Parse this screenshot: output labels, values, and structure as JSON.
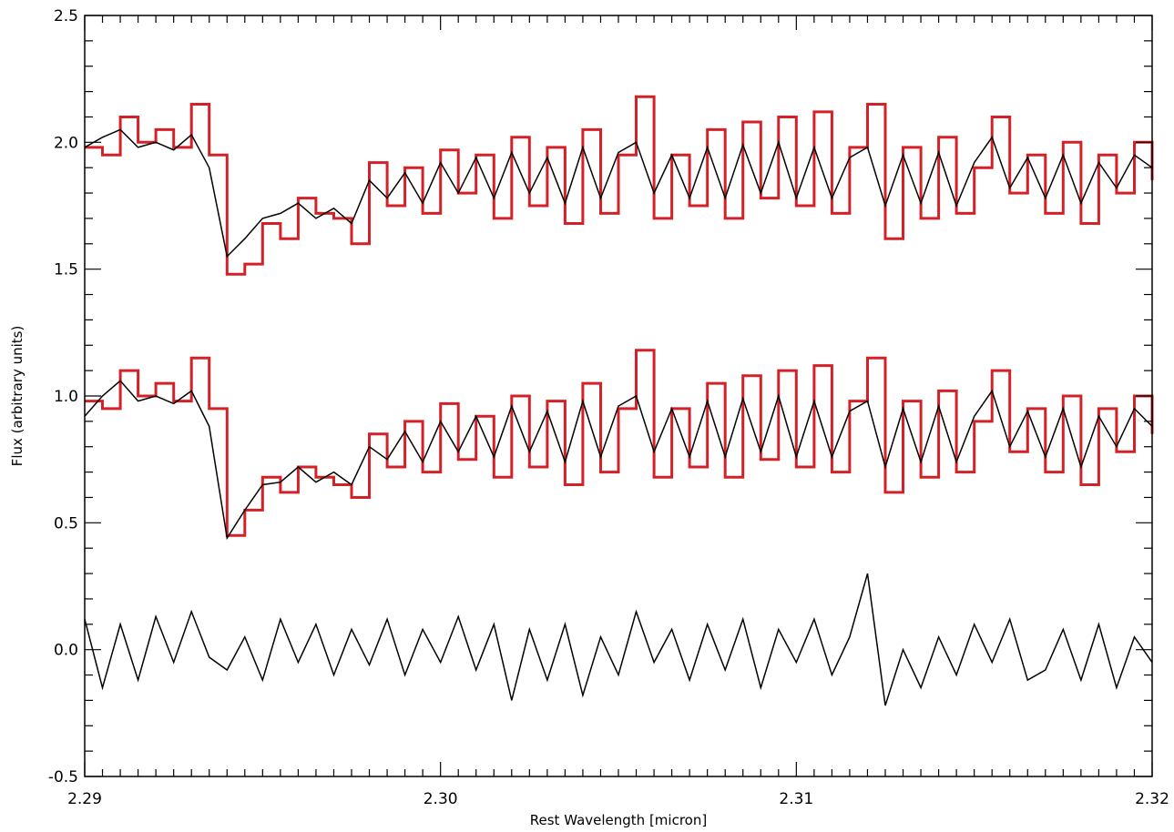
{
  "chart_data": {
    "type": "line",
    "title": "",
    "xlabel": "Rest Wavelength [micron]",
    "ylabel": "Flux (arbitrary units)",
    "xlim": [
      2.29,
      2.32
    ],
    "ylim": [
      -0.5,
      2.5
    ],
    "xticks": [
      2.29,
      2.3,
      2.31,
      2.32
    ],
    "xtick_labels": [
      "2.29",
      "2.30",
      "2.31",
      "2.32"
    ],
    "yticks": [
      -0.5,
      0.0,
      0.5,
      1.0,
      1.5,
      2.0,
      2.5
    ],
    "ytick_labels": [
      "-0.5",
      "0.0",
      "0.5",
      "1.0",
      "1.5",
      "2.0",
      "2.5"
    ],
    "grid": false,
    "legend": "none",
    "colors": {
      "observed": "#d42027",
      "model": "#000000",
      "residual": "#000000",
      "axes": "#000000"
    },
    "series": [
      {
        "style": "step",
        "color": "#d42027",
        "x": [
          2.29,
          2.2905,
          2.291,
          2.2915,
          2.292,
          2.2925,
          2.293,
          2.2935,
          2.294,
          2.2945,
          2.295,
          2.2955,
          2.296,
          2.2965,
          2.297,
          2.2975,
          2.298,
          2.2985,
          2.299,
          2.2995,
          2.3,
          2.3005,
          2.301,
          2.3015,
          2.302,
          2.3025,
          2.303,
          2.3035,
          2.304,
          2.3045,
          2.305,
          2.3055,
          2.306,
          2.3065,
          2.307,
          2.3075,
          2.308,
          2.3085,
          2.309,
          2.3095,
          2.31,
          2.3105,
          2.311,
          2.3115,
          2.312,
          2.3125,
          2.313,
          2.3135,
          2.314,
          2.3145,
          2.315,
          2.3155,
          2.316,
          2.3165,
          2.317,
          2.3175,
          2.318,
          2.3185,
          2.319,
          2.3195,
          2.32
        ],
        "y": [
          1.98,
          1.95,
          2.1,
          2.0,
          2.05,
          1.98,
          2.15,
          1.95,
          1.48,
          1.52,
          1.68,
          1.62,
          1.78,
          1.72,
          1.7,
          1.6,
          1.92,
          1.75,
          1.9,
          1.72,
          1.97,
          1.8,
          1.95,
          1.7,
          2.02,
          1.75,
          1.98,
          1.68,
          2.05,
          1.72,
          1.95,
          2.18,
          1.7,
          1.95,
          1.75,
          2.05,
          1.7,
          2.08,
          1.78,
          2.1,
          1.75,
          2.12,
          1.72,
          1.98,
          2.15,
          1.62,
          1.98,
          1.7,
          2.02,
          1.72,
          1.9,
          2.1,
          1.8,
          1.95,
          1.72,
          2.0,
          1.68,
          1.95,
          1.8,
          2.0,
          1.85
        ]
      },
      {
        "style": "line",
        "color": "#000000",
        "x": [
          2.29,
          2.2905,
          2.291,
          2.2915,
          2.292,
          2.2925,
          2.293,
          2.2935,
          2.294,
          2.2945,
          2.295,
          2.2955,
          2.296,
          2.2965,
          2.297,
          2.2975,
          2.298,
          2.2985,
          2.299,
          2.2995,
          2.3,
          2.3005,
          2.301,
          2.3015,
          2.302,
          2.3025,
          2.303,
          2.3035,
          2.304,
          2.3045,
          2.305,
          2.3055,
          2.306,
          2.3065,
          2.307,
          2.3075,
          2.308,
          2.3085,
          2.309,
          2.3095,
          2.31,
          2.3105,
          2.311,
          2.3115,
          2.312,
          2.3125,
          2.313,
          2.3135,
          2.314,
          2.3145,
          2.315,
          2.3155,
          2.316,
          2.3165,
          2.317,
          2.3175,
          2.318,
          2.3185,
          2.319,
          2.3195,
          2.32
        ],
        "y": [
          1.98,
          2.02,
          2.05,
          1.98,
          2.0,
          1.97,
          2.03,
          1.9,
          1.55,
          1.62,
          1.7,
          1.72,
          1.76,
          1.7,
          1.74,
          1.68,
          1.85,
          1.78,
          1.88,
          1.76,
          1.92,
          1.8,
          1.94,
          1.78,
          1.96,
          1.8,
          1.94,
          1.76,
          1.98,
          1.78,
          1.96,
          2.0,
          1.8,
          1.95,
          1.78,
          1.98,
          1.78,
          1.99,
          1.8,
          2.0,
          1.78,
          1.98,
          1.78,
          1.94,
          1.98,
          1.75,
          1.95,
          1.76,
          1.96,
          1.75,
          1.92,
          2.02,
          1.82,
          1.94,
          1.78,
          1.95,
          1.76,
          1.92,
          1.82,
          1.95,
          1.9
        ]
      },
      {
        "style": "step",
        "color": "#d42027",
        "x": [
          2.29,
          2.2905,
          2.291,
          2.2915,
          2.292,
          2.2925,
          2.293,
          2.2935,
          2.294,
          2.2945,
          2.295,
          2.2955,
          2.296,
          2.2965,
          2.297,
          2.2975,
          2.298,
          2.2985,
          2.299,
          2.2995,
          2.3,
          2.3005,
          2.301,
          2.3015,
          2.302,
          2.3025,
          2.303,
          2.3035,
          2.304,
          2.3045,
          2.305,
          2.3055,
          2.306,
          2.3065,
          2.307,
          2.3075,
          2.308,
          2.3085,
          2.309,
          2.3095,
          2.31,
          2.3105,
          2.311,
          2.3115,
          2.312,
          2.3125,
          2.313,
          2.3135,
          2.314,
          2.3145,
          2.315,
          2.3155,
          2.316,
          2.3165,
          2.317,
          2.3175,
          2.318,
          2.3185,
          2.319,
          2.3195,
          2.32
        ],
        "y": [
          0.98,
          0.95,
          1.1,
          1.0,
          1.05,
          0.98,
          1.15,
          0.95,
          0.45,
          0.55,
          0.68,
          0.62,
          0.72,
          0.68,
          0.65,
          0.6,
          0.85,
          0.72,
          0.9,
          0.7,
          0.97,
          0.75,
          0.92,
          0.68,
          1.0,
          0.72,
          0.98,
          0.65,
          1.05,
          0.7,
          0.95,
          1.18,
          0.68,
          0.95,
          0.72,
          1.05,
          0.68,
          1.08,
          0.75,
          1.1,
          0.72,
          1.12,
          0.7,
          0.98,
          1.15,
          0.62,
          0.98,
          0.68,
          1.02,
          0.7,
          0.9,
          1.1,
          0.78,
          0.95,
          0.7,
          1.0,
          0.65,
          0.95,
          0.78,
          1.0,
          0.85
        ]
      },
      {
        "style": "line",
        "color": "#000000",
        "x": [
          2.29,
          2.2905,
          2.291,
          2.2915,
          2.292,
          2.2925,
          2.293,
          2.2935,
          2.294,
          2.2945,
          2.295,
          2.2955,
          2.296,
          2.2965,
          2.297,
          2.2975,
          2.298,
          2.2985,
          2.299,
          2.2995,
          2.3,
          2.3005,
          2.301,
          2.3015,
          2.302,
          2.3025,
          2.303,
          2.3035,
          2.304,
          2.3045,
          2.305,
          2.3055,
          2.306,
          2.3065,
          2.307,
          2.3075,
          2.308,
          2.3085,
          2.309,
          2.3095,
          2.31,
          2.3105,
          2.311,
          2.3115,
          2.312,
          2.3125,
          2.313,
          2.3135,
          2.314,
          2.3145,
          2.315,
          2.3155,
          2.316,
          2.3165,
          2.317,
          2.3175,
          2.318,
          2.3185,
          2.319,
          2.3195,
          2.32
        ],
        "y": [
          0.92,
          1.0,
          1.06,
          0.98,
          1.0,
          0.97,
          1.02,
          0.88,
          0.44,
          0.55,
          0.65,
          0.66,
          0.72,
          0.66,
          0.7,
          0.65,
          0.8,
          0.75,
          0.86,
          0.74,
          0.9,
          0.78,
          0.92,
          0.76,
          0.96,
          0.78,
          0.94,
          0.74,
          0.98,
          0.76,
          0.96,
          1.0,
          0.78,
          0.95,
          0.76,
          0.98,
          0.76,
          0.99,
          0.78,
          1.0,
          0.76,
          0.98,
          0.76,
          0.94,
          0.98,
          0.72,
          0.95,
          0.74,
          0.96,
          0.74,
          0.92,
          1.02,
          0.8,
          0.94,
          0.76,
          0.95,
          0.72,
          0.92,
          0.8,
          0.95,
          0.88
        ]
      },
      {
        "style": "line",
        "color": "#000000",
        "x": [
          2.29,
          2.2905,
          2.291,
          2.2915,
          2.292,
          2.2925,
          2.293,
          2.2935,
          2.294,
          2.2945,
          2.295,
          2.2955,
          2.296,
          2.2965,
          2.297,
          2.2975,
          2.298,
          2.2985,
          2.299,
          2.2995,
          2.3,
          2.3005,
          2.301,
          2.3015,
          2.302,
          2.3025,
          2.303,
          2.3035,
          2.304,
          2.3045,
          2.305,
          2.3055,
          2.306,
          2.3065,
          2.307,
          2.3075,
          2.308,
          2.3085,
          2.309,
          2.3095,
          2.31,
          2.3105,
          2.311,
          2.3115,
          2.312,
          2.3125,
          2.313,
          2.3135,
          2.314,
          2.3145,
          2.315,
          2.3155,
          2.316,
          2.3165,
          2.317,
          2.3175,
          2.318,
          2.3185,
          2.319,
          2.3195,
          2.32
        ],
        "y": [
          0.12,
          -0.15,
          0.1,
          -0.12,
          0.13,
          -0.05,
          0.15,
          -0.03,
          -0.08,
          0.05,
          -0.12,
          0.12,
          -0.05,
          0.1,
          -0.1,
          0.08,
          -0.06,
          0.12,
          -0.1,
          0.08,
          -0.05,
          0.13,
          -0.08,
          0.1,
          -0.2,
          0.08,
          -0.12,
          0.1,
          -0.18,
          0.05,
          -0.1,
          0.15,
          -0.05,
          0.08,
          -0.12,
          0.1,
          -0.08,
          0.12,
          -0.15,
          0.08,
          -0.05,
          0.12,
          -0.1,
          0.05,
          0.3,
          -0.22,
          0.0,
          -0.15,
          0.05,
          -0.1,
          0.1,
          -0.05,
          0.12,
          -0.12,
          -0.08,
          0.08,
          -0.12,
          0.1,
          -0.15,
          0.05,
          -0.05
        ]
      }
    ]
  }
}
